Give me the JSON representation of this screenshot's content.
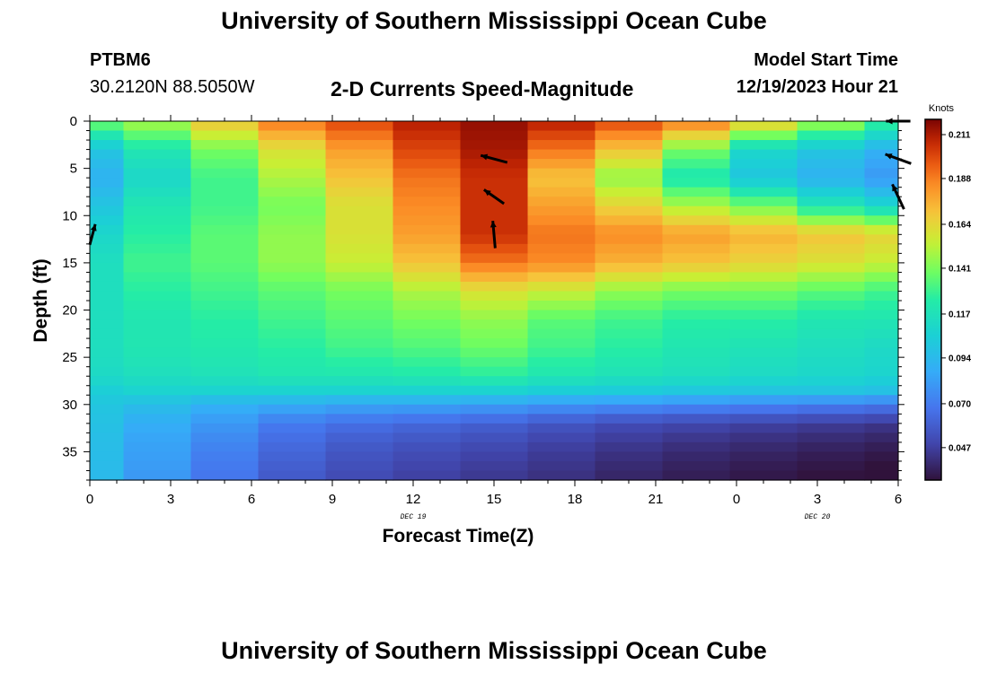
{
  "page": {
    "title": "University of Southern Mississippi Ocean Cube",
    "title_repeat": "University of Southern Mississippi Ocean Cube",
    "station": "PTBM6",
    "coords": "30.2120N  88.5050W",
    "subtitle": "2-D Currents Speed-Magnitude",
    "model_start_label": "Model Start Time",
    "model_start_value": "12/19/2023 Hour 21"
  },
  "chart_data": {
    "type": "heatmap",
    "title": "2-D Currents Speed-Magnitude",
    "xlabel": "Forecast Time(Z)",
    "ylabel": "Depth (ft)",
    "x_ticks": [
      "0",
      "3",
      "6",
      "9",
      "12",
      "15",
      "18",
      "21",
      "0",
      "3",
      "6"
    ],
    "x_tick_hours": [
      0,
      3,
      6,
      9,
      12,
      15,
      18,
      21,
      24,
      27,
      30
    ],
    "date_labels": [
      {
        "text": "DEC 19",
        "hour": 12
      },
      {
        "text": "DEC 20",
        "hour": 27
      }
    ],
    "xlim_hours": [
      0,
      30
    ],
    "y_ticks": [
      0,
      5,
      10,
      15,
      20,
      25,
      30,
      35
    ],
    "ylim_ft": [
      0,
      38
    ],
    "time_hours": [
      0,
      2.5,
      5,
      7.5,
      10,
      12.5,
      15,
      17.5,
      20,
      22.5,
      25,
      27.5,
      30
    ],
    "depth_levels_ft": [
      0,
      3,
      6,
      9,
      12,
      15,
      18,
      21,
      24,
      27,
      28.5,
      30,
      32,
      34,
      36,
      38
    ],
    "speed_knots": [
      [
        0.14,
        0.15,
        0.17,
        0.19,
        0.2,
        0.21,
        0.215,
        0.21,
        0.2,
        0.19,
        0.17,
        0.15,
        0.13
      ],
      [
        0.1,
        0.12,
        0.14,
        0.16,
        0.18,
        0.2,
        0.212,
        0.19,
        0.17,
        0.14,
        0.11,
        0.1,
        0.09
      ],
      [
        0.09,
        0.11,
        0.13,
        0.15,
        0.17,
        0.19,
        0.205,
        0.17,
        0.145,
        0.12,
        0.1,
        0.09,
        0.08
      ],
      [
        0.1,
        0.12,
        0.13,
        0.14,
        0.16,
        0.185,
        0.205,
        0.18,
        0.165,
        0.15,
        0.14,
        0.12,
        0.11
      ],
      [
        0.11,
        0.125,
        0.135,
        0.145,
        0.16,
        0.18,
        0.205,
        0.19,
        0.185,
        0.18,
        0.175,
        0.17,
        0.165
      ],
      [
        0.115,
        0.13,
        0.135,
        0.145,
        0.155,
        0.17,
        0.19,
        0.185,
        0.175,
        0.17,
        0.165,
        0.16,
        0.155
      ],
      [
        0.115,
        0.125,
        0.13,
        0.135,
        0.14,
        0.15,
        0.16,
        0.155,
        0.145,
        0.14,
        0.14,
        0.135,
        0.13
      ],
      [
        0.115,
        0.12,
        0.125,
        0.13,
        0.135,
        0.14,
        0.145,
        0.135,
        0.13,
        0.125,
        0.125,
        0.12,
        0.12
      ],
      [
        0.115,
        0.12,
        0.122,
        0.125,
        0.13,
        0.133,
        0.138,
        0.13,
        0.125,
        0.12,
        0.118,
        0.115,
        0.112
      ],
      [
        0.112,
        0.115,
        0.117,
        0.12,
        0.12,
        0.122,
        0.125,
        0.12,
        0.117,
        0.115,
        0.112,
        0.11,
        0.108
      ],
      [
        0.105,
        0.108,
        0.108,
        0.108,
        0.108,
        0.108,
        0.108,
        0.105,
        0.104,
        0.102,
        0.1,
        0.1,
        0.098
      ],
      [
        0.1,
        0.096,
        0.09,
        0.088,
        0.085,
        0.085,
        0.083,
        0.08,
        0.078,
        0.076,
        0.074,
        0.072,
        0.07
      ],
      [
        0.098,
        0.088,
        0.08,
        0.07,
        0.066,
        0.063,
        0.06,
        0.056,
        0.052,
        0.05,
        0.048,
        0.046,
        0.044
      ],
      [
        0.096,
        0.084,
        0.074,
        0.064,
        0.058,
        0.055,
        0.052,
        0.048,
        0.045,
        0.042,
        0.04,
        0.038,
        0.036
      ],
      [
        0.095,
        0.082,
        0.07,
        0.06,
        0.054,
        0.05,
        0.047,
        0.044,
        0.04,
        0.037,
        0.035,
        0.033,
        0.031
      ],
      [
        0.094,
        0.08,
        0.068,
        0.057,
        0.051,
        0.047,
        0.044,
        0.041,
        0.037,
        0.034,
        0.032,
        0.03,
        0.028
      ]
    ],
    "current_vectors": [
      {
        "hour": 0.1,
        "depth_ft": 12,
        "dir_deg": 15,
        "len": 0.7
      },
      {
        "hour": 15,
        "depth_ft": 4,
        "dir_deg": 285,
        "len": 0.9
      },
      {
        "hour": 15,
        "depth_ft": 8,
        "dir_deg": 305,
        "len": 0.8
      },
      {
        "hour": 15,
        "depth_ft": 12,
        "dir_deg": 355,
        "len": 0.9
      },
      {
        "hour": 30,
        "depth_ft": 0,
        "dir_deg": 270,
        "len": 0.8
      },
      {
        "hour": 30,
        "depth_ft": 4,
        "dir_deg": 290,
        "len": 0.9
      },
      {
        "hour": 30,
        "depth_ft": 8,
        "dir_deg": 335,
        "len": 0.9
      }
    ],
    "colorbar": {
      "label": "Knots",
      "min": 0.03,
      "max": 0.219,
      "ticks": [
        0.211,
        0.188,
        0.164,
        0.141,
        0.117,
        0.094,
        0.07,
        0.047
      ],
      "tick_labels": [
        "0.211",
        "0.188",
        "0.164",
        "0.141",
        "0.117",
        "0.094",
        "0.070",
        "0.047"
      ]
    }
  }
}
